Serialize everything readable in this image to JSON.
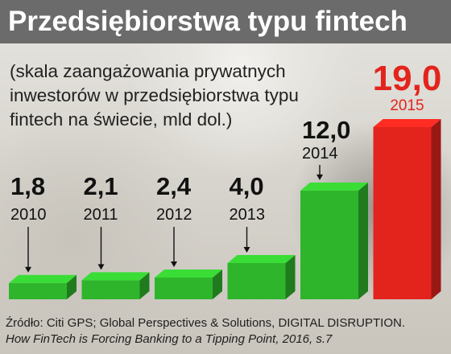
{
  "title": "Przedsiębiorstwa typu fintech",
  "subtitle": "(skala zaangażowania prywatnych inwestorów w przedsiębiorstwa typu fintech na świecie, mld dol.)",
  "source_line1": "Źródło: Citi GPS; Global Perspectives & Solutions, DIGITAL DISRUPTION.",
  "source_line2": "How FinTech is Forcing Banking to a Tipping Point, 2016, s.7",
  "colors": {
    "title_bar": "#6b6b6b",
    "bar_green": "#2fb52c",
    "bar_red": "#e3241d",
    "value_text": "#111111",
    "highlight_text": "#e3241d"
  },
  "chart_data": {
    "type": "bar",
    "style": "3d",
    "categories": [
      "2010",
      "2011",
      "2012",
      "2013",
      "2014",
      "2015"
    ],
    "values": [
      1.8,
      2.1,
      2.4,
      4.0,
      12.0,
      19.0
    ],
    "value_labels": [
      "1,8",
      "2,1",
      "2,4",
      "4,0",
      "12,0",
      "19,0"
    ],
    "highlight_index": 5,
    "unit": "mld dol."
  }
}
